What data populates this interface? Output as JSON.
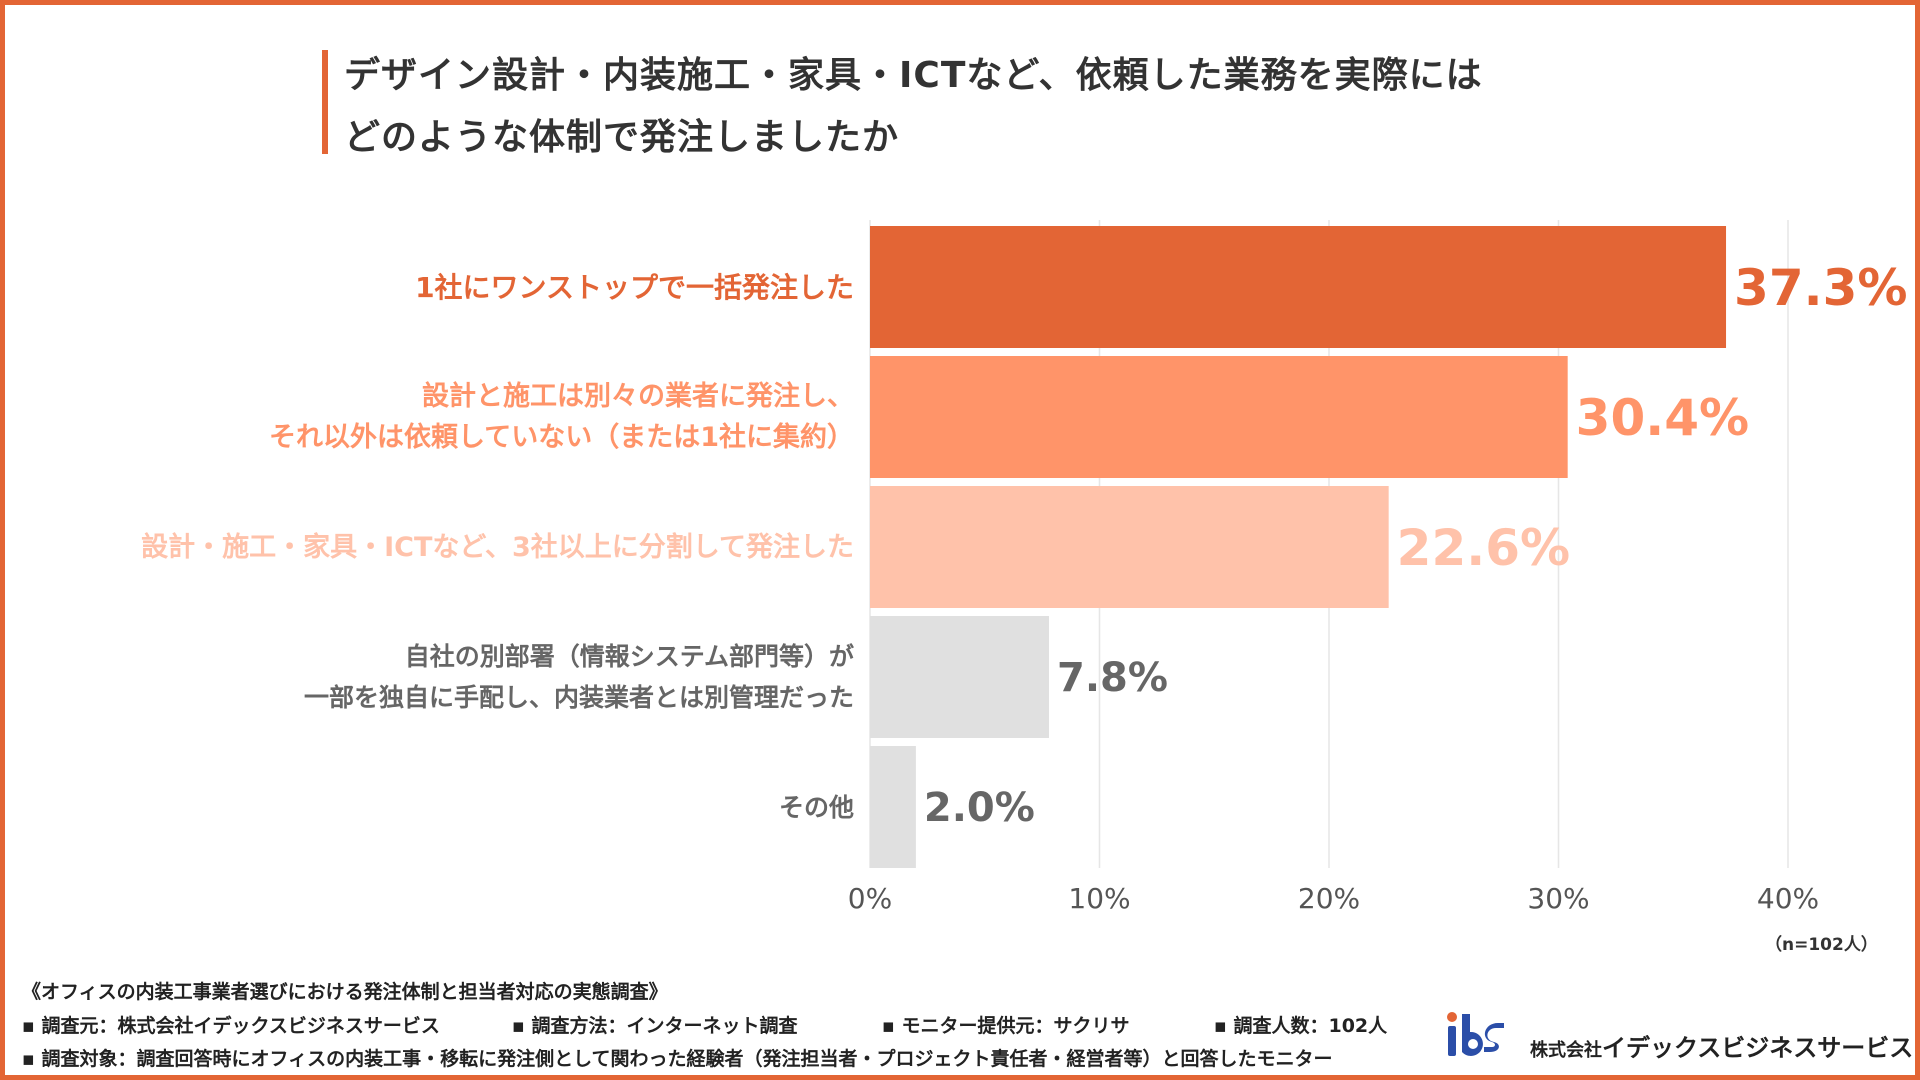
{
  "title": {
    "line1": "デザイン設計・内装施工・家具・ICTなど、依頼した業務を実際には",
    "line2": "どのような体制で発注しましたか"
  },
  "chart_data": {
    "type": "bar",
    "orientation": "horizontal",
    "categories": [
      [
        "1社にワンストップで一括発注した"
      ],
      [
        "設計と施工は別々の業者に発注し、",
        "それ以外は依頼していない（または1社に集約）"
      ],
      [
        "設計・施工・家具・ICTなど、3社以上に分割して発注した"
      ],
      [
        "自社の別部署（情報システム部門等）が",
        "一部を独自に手配し、内装業者とは別管理だった"
      ],
      [
        "その他"
      ]
    ],
    "values": [
      37.3,
      30.4,
      22.6,
      7.8,
      2.0
    ],
    "value_labels": [
      "37.3%",
      "30.4%",
      "22.6%",
      "7.8%",
      "2.0%"
    ],
    "colors": [
      "#e36535",
      "#ff9469",
      "#ffc2aa",
      "#e0e0e0",
      "#e0e0e0"
    ],
    "label_colors": [
      "#e36535",
      "#ff9469",
      "#ffc2aa",
      "#666666",
      "#666666"
    ],
    "xlim": [
      0,
      40
    ],
    "ticks": [
      0,
      10,
      20,
      30,
      40
    ],
    "tick_labels": [
      "0%",
      "10%",
      "20%",
      "30%",
      "40%"
    ],
    "grid": true,
    "n_label": "（n=102人）"
  },
  "footer": {
    "survey_title": "《オフィスの内装工事業者選びにおける発注体制と担当者対応の実態調査》",
    "meta": [
      "▪ 調査元：株式会社イデックスビジネスサービス",
      "▪ 調査方法：インターネット調査",
      "▪ モニター提供元：サクリサ",
      "▪ 調査人数：102人"
    ],
    "target": "▪ 調査対象：調査回答時にオフィスの内装工事・移転に発注側として関わった経験者（発注担当者・プロジェクト責任者・経営者等）と回答したモニター"
  },
  "logo": {
    "mark": "ibs",
    "company_prefix": "株式会社",
    "company_name": "イデックスビジネスサービス",
    "color": "#2b4ea8"
  }
}
